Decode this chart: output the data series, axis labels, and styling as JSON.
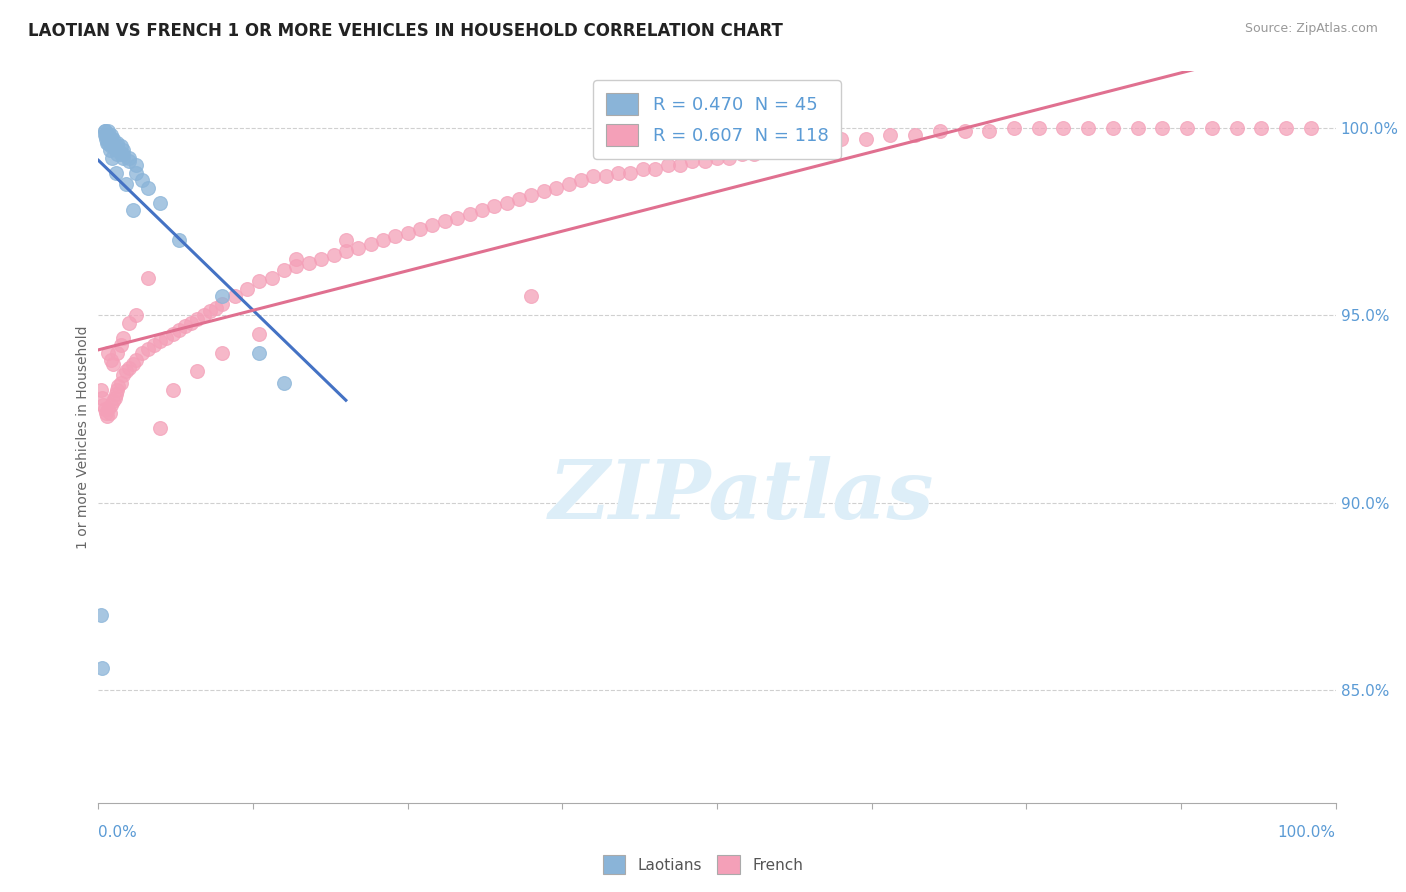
{
  "title": "LAOTIAN VS FRENCH 1 OR MORE VEHICLES IN HOUSEHOLD CORRELATION CHART",
  "source": "Source: ZipAtlas.com",
  "ylabel": "1 or more Vehicles in Household",
  "ytick_labels": [
    "85.0%",
    "90.0%",
    "95.0%",
    "100.0%"
  ],
  "ytick_values": [
    0.85,
    0.9,
    0.95,
    1.0
  ],
  "xlim": [
    0.0,
    1.0
  ],
  "ylim": [
    0.82,
    1.015
  ],
  "watermark_text": "ZIPatlas",
  "legend_label_lao": "R = 0.470  N = 45",
  "legend_label_fr": "R = 0.607  N = 118",
  "laotian_color": "#8ab4d8",
  "french_color": "#f4a0b8",
  "laotian_line_color": "#4472c4",
  "french_line_color": "#e07090",
  "background_color": "#ffffff",
  "grid_color": "#d0d0d0",
  "axis_label_color": "#5b9bd5",
  "title_fontsize": 12,
  "watermark_color": "#ddeef8",
  "laotian_scatter_x": [
    0.005,
    0.005,
    0.005,
    0.008,
    0.008,
    0.008,
    0.008,
    0.008,
    0.01,
    0.01,
    0.01,
    0.01,
    0.012,
    0.012,
    0.012,
    0.015,
    0.015,
    0.015,
    0.015,
    0.018,
    0.018,
    0.02,
    0.02,
    0.02,
    0.025,
    0.025,
    0.03,
    0.03,
    0.035,
    0.04,
    0.05,
    0.065,
    0.1,
    0.13,
    0.15,
    0.002,
    0.006,
    0.006,
    0.007,
    0.009,
    0.011,
    0.014,
    0.022,
    0.028,
    0.003
  ],
  "laotian_scatter_y": [
    0.999,
    0.999,
    0.998,
    0.999,
    0.998,
    0.997,
    0.997,
    0.996,
    0.998,
    0.997,
    0.996,
    0.995,
    0.997,
    0.996,
    0.995,
    0.996,
    0.995,
    0.994,
    0.993,
    0.995,
    0.993,
    0.994,
    0.993,
    0.992,
    0.992,
    0.991,
    0.99,
    0.988,
    0.986,
    0.984,
    0.98,
    0.97,
    0.955,
    0.94,
    0.932,
    0.87,
    0.998,
    0.997,
    0.996,
    0.994,
    0.992,
    0.988,
    0.985,
    0.978,
    0.856
  ],
  "french_scatter_x": [
    0.002,
    0.003,
    0.004,
    0.005,
    0.006,
    0.007,
    0.008,
    0.009,
    0.01,
    0.012,
    0.013,
    0.014,
    0.015,
    0.016,
    0.018,
    0.02,
    0.022,
    0.025,
    0.028,
    0.03,
    0.035,
    0.04,
    0.045,
    0.05,
    0.055,
    0.06,
    0.065,
    0.07,
    0.075,
    0.08,
    0.085,
    0.09,
    0.095,
    0.1,
    0.11,
    0.12,
    0.13,
    0.14,
    0.15,
    0.16,
    0.17,
    0.18,
    0.19,
    0.2,
    0.21,
    0.22,
    0.23,
    0.24,
    0.25,
    0.26,
    0.27,
    0.28,
    0.29,
    0.3,
    0.31,
    0.32,
    0.33,
    0.34,
    0.35,
    0.36,
    0.37,
    0.38,
    0.39,
    0.4,
    0.41,
    0.42,
    0.43,
    0.44,
    0.45,
    0.46,
    0.47,
    0.48,
    0.49,
    0.5,
    0.51,
    0.52,
    0.53,
    0.54,
    0.55,
    0.56,
    0.58,
    0.6,
    0.62,
    0.64,
    0.66,
    0.68,
    0.7,
    0.72,
    0.74,
    0.76,
    0.78,
    0.8,
    0.82,
    0.84,
    0.86,
    0.88,
    0.9,
    0.92,
    0.94,
    0.96,
    0.98,
    0.008,
    0.01,
    0.012,
    0.015,
    0.018,
    0.02,
    0.025,
    0.03,
    0.04,
    0.05,
    0.06,
    0.08,
    0.1,
    0.13,
    0.16,
    0.2,
    0.35
  ],
  "french_scatter_y": [
    0.93,
    0.928,
    0.926,
    0.925,
    0.924,
    0.923,
    0.925,
    0.924,
    0.926,
    0.927,
    0.928,
    0.929,
    0.93,
    0.931,
    0.932,
    0.934,
    0.935,
    0.936,
    0.937,
    0.938,
    0.94,
    0.941,
    0.942,
    0.943,
    0.944,
    0.945,
    0.946,
    0.947,
    0.948,
    0.949,
    0.95,
    0.951,
    0.952,
    0.953,
    0.955,
    0.957,
    0.959,
    0.96,
    0.962,
    0.963,
    0.964,
    0.965,
    0.966,
    0.967,
    0.968,
    0.969,
    0.97,
    0.971,
    0.972,
    0.973,
    0.974,
    0.975,
    0.976,
    0.977,
    0.978,
    0.979,
    0.98,
    0.981,
    0.982,
    0.983,
    0.984,
    0.985,
    0.986,
    0.987,
    0.987,
    0.988,
    0.988,
    0.989,
    0.989,
    0.99,
    0.99,
    0.991,
    0.991,
    0.992,
    0.992,
    0.993,
    0.993,
    0.994,
    0.994,
    0.995,
    0.996,
    0.997,
    0.997,
    0.998,
    0.998,
    0.999,
    0.999,
    0.999,
    1.0,
    1.0,
    1.0,
    1.0,
    1.0,
    1.0,
    1.0,
    1.0,
    1.0,
    1.0,
    1.0,
    1.0,
    1.0,
    0.94,
    0.938,
    0.937,
    0.94,
    0.942,
    0.944,
    0.948,
    0.95,
    0.96,
    0.92,
    0.93,
    0.935,
    0.94,
    0.945,
    0.965,
    0.97,
    0.955
  ]
}
